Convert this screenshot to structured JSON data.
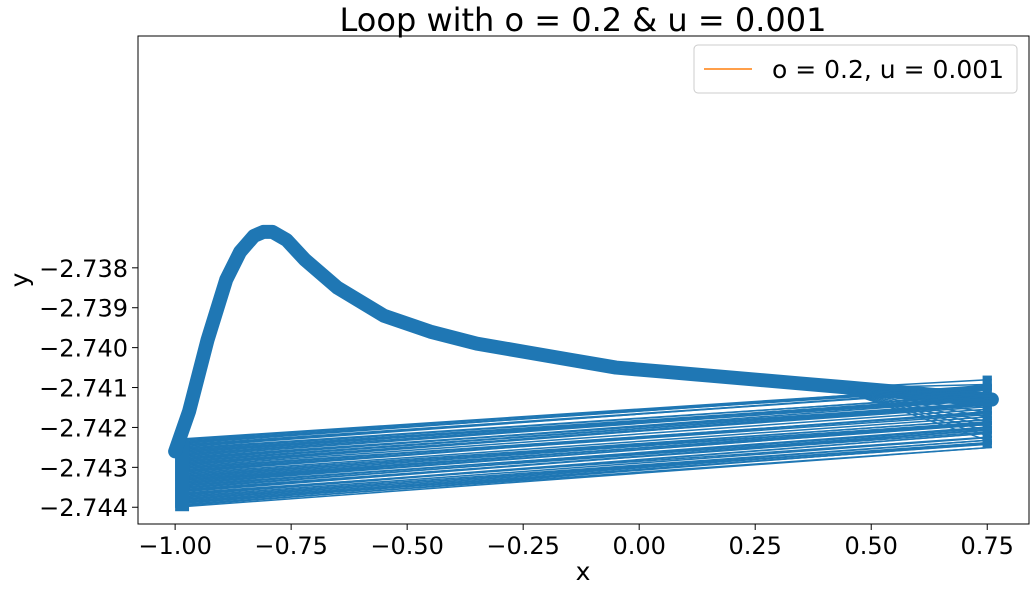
{
  "chart_data": {
    "type": "line",
    "title": "Loop with o = 0.2 & u = 0.001",
    "xlabel": "x",
    "ylabel": "y",
    "xlim": [
      -1.08,
      0.84
    ],
    "ylim": [
      -2.74442,
      -2.73219
    ],
    "xticks": [
      -1.0,
      -0.75,
      -0.5,
      -0.25,
      0.0,
      0.25,
      0.5,
      0.75
    ],
    "xtick_labels": [
      "−1.00",
      "−0.75",
      "−0.50",
      "−0.25",
      "0.00",
      "0.25",
      "0.50",
      "0.75"
    ],
    "yticks": [
      -2.738,
      -2.739,
      -2.74,
      -2.741,
      -2.742,
      -2.743,
      -2.744
    ],
    "ytick_labels": [
      "−2.738",
      "−2.739",
      "−2.740",
      "−2.741",
      "−2.742",
      "−2.743",
      "−2.744"
    ],
    "grid": false,
    "legend": {
      "position": "top-right",
      "entries": [
        {
          "label": "o = 0.2, u = 0.001",
          "color": "#ff9f4a"
        }
      ]
    },
    "series": [
      {
        "color": "#1f77b4",
        "upper_path": {
          "x": [
            -1.0,
            -0.97,
            -0.93,
            -0.89,
            -0.86,
            -0.83,
            -0.81,
            -0.79,
            -0.76,
            -0.72,
            -0.65,
            -0.55,
            -0.45,
            -0.35,
            -0.25,
            -0.15,
            -0.05,
            0.05,
            0.15,
            0.25,
            0.35,
            0.45,
            0.55,
            0.65,
            0.76
          ],
          "y": [
            -2.7426,
            -2.7416,
            -2.7398,
            -2.7383,
            -2.7376,
            -2.7372,
            -2.7371,
            -2.7371,
            -2.7373,
            -2.7378,
            -2.7385,
            -2.7392,
            -2.7396,
            -2.7399,
            -2.7401,
            -2.7403,
            -2.7405,
            -2.7406,
            -2.7407,
            -2.7408,
            -2.7409,
            -2.741,
            -2.7411,
            -2.7412,
            -2.7413
          ]
        },
        "lower_lines": {
          "x_start": -1.0,
          "x_end": 0.76,
          "y_start_range": [
            -2.744,
            -2.7423
          ],
          "y_end_range": [
            -2.7425,
            -2.7409
          ],
          "count": 60
        },
        "left_band": {
          "x_range": [
            -1.0,
            -0.97
          ],
          "y_range": [
            -2.7441,
            -2.7423
          ]
        },
        "right_band": {
          "x_range": [
            0.74,
            0.76
          ],
          "y_range": [
            -2.7425,
            -2.7407
          ]
        }
      }
    ]
  }
}
